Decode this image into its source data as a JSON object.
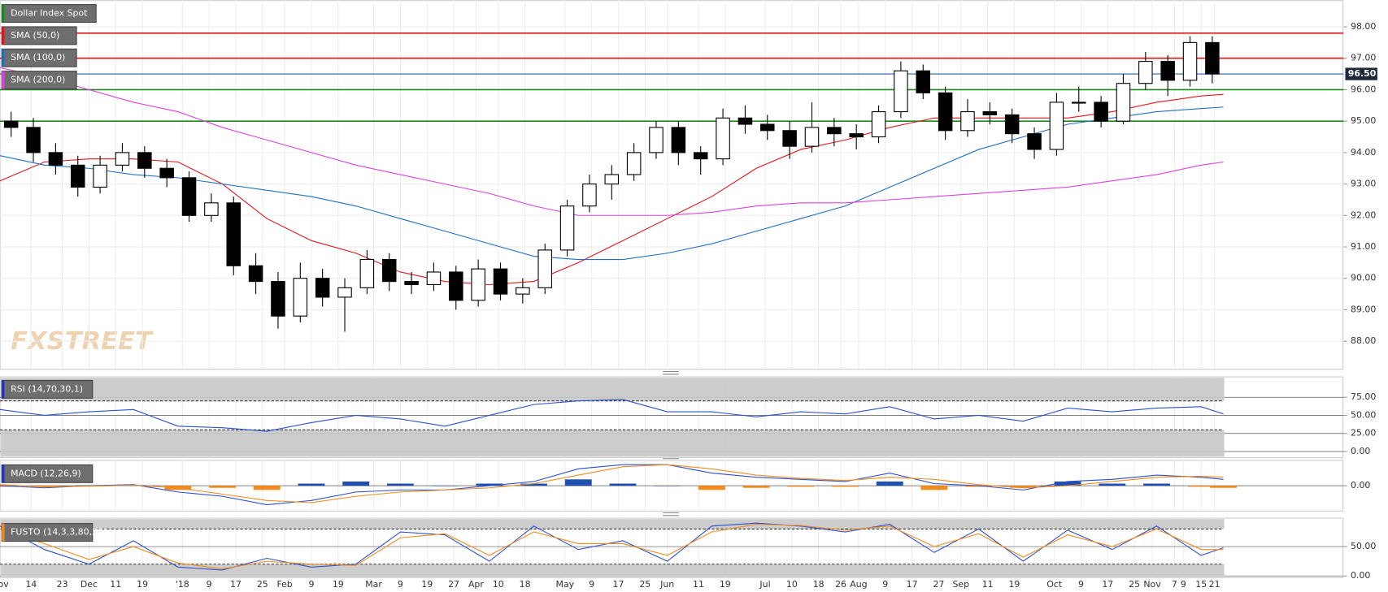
{
  "chart_data": [
    {
      "type": "candlestick",
      "title": "Dollar Index Spot",
      "watermark": "FXSTREET",
      "xlim": [
        0,
        302
      ],
      "xticks": [
        {
          "value": 0,
          "label": "Nov"
        },
        {
          "value": 7,
          "label": "14"
        },
        {
          "value": 14,
          "label": "23"
        },
        {
          "value": 20,
          "label": "Dec"
        },
        {
          "value": 26,
          "label": "11"
        },
        {
          "value": 32,
          "label": "19"
        },
        {
          "value": 41,
          "label": "'18"
        },
        {
          "value": 47,
          "label": "9"
        },
        {
          "value": 53,
          "label": "17"
        },
        {
          "value": 59,
          "label": "25"
        },
        {
          "value": 64,
          "label": "Feb"
        },
        {
          "value": 70,
          "label": "9"
        },
        {
          "value": 76,
          "label": "19"
        },
        {
          "value": 84,
          "label": "Mar"
        },
        {
          "value": 90,
          "label": "9"
        },
        {
          "value": 96,
          "label": "19"
        },
        {
          "value": 102,
          "label": "27"
        },
        {
          "value": 107,
          "label": "Apr"
        },
        {
          "value": 112,
          "label": "10"
        },
        {
          "value": 118,
          "label": "18"
        },
        {
          "value": 127,
          "label": "May"
        },
        {
          "value": 133,
          "label": "9"
        },
        {
          "value": 139,
          "label": "17"
        },
        {
          "value": 145,
          "label": "25"
        },
        {
          "value": 150,
          "label": "Jun"
        },
        {
          "value": 157,
          "label": "11"
        },
        {
          "value": 163,
          "label": "19"
        },
        {
          "value": 172,
          "label": "Jul"
        },
        {
          "value": 178,
          "label": "10"
        },
        {
          "value": 184,
          "label": "18"
        },
        {
          "value": 189,
          "label": "26"
        },
        {
          "value": 193,
          "label": "Aug"
        },
        {
          "value": 199,
          "label": "9"
        },
        {
          "value": 205,
          "label": "17"
        },
        {
          "value": 211,
          "label": "27"
        },
        {
          "value": 216,
          "label": "Sep"
        },
        {
          "value": 222,
          "label": "11"
        },
        {
          "value": 228,
          "label": "19"
        },
        {
          "value": 237,
          "label": "Oct"
        },
        {
          "value": 243,
          "label": "9"
        },
        {
          "value": 249,
          "label": "17"
        },
        {
          "value": 255,
          "label": "25"
        },
        {
          "value": 259,
          "label": "Nov"
        },
        {
          "value": 264,
          "label": "7"
        },
        {
          "value": 266,
          "label": "9"
        },
        {
          "value": 270,
          "label": "15"
        },
        {
          "value": 273,
          "label": "21"
        }
      ],
      "ylim": [
        87.12,
        98.85
      ],
      "yticks": [
        {
          "value": 88,
          "label": "88.00"
        },
        {
          "value": 89,
          "label": "89.00"
        },
        {
          "value": 90,
          "label": "90.00"
        },
        {
          "value": 91,
          "label": "91.00"
        },
        {
          "value": 92,
          "label": "92.00"
        },
        {
          "value": 93,
          "label": "93.00"
        },
        {
          "value": 94,
          "label": "94.00"
        },
        {
          "value": 95,
          "label": "95.00"
        },
        {
          "value": 96,
          "label": "96.00"
        },
        {
          "value": 97,
          "label": "97.00"
        },
        {
          "value": 98,
          "label": "98.00"
        }
      ],
      "last_price": {
        "value": 96.5,
        "label": "96.50"
      },
      "levels": [
        {
          "value": 97.8,
          "color": "#e8141a"
        },
        {
          "value": 97.0,
          "color": "#e8141a"
        },
        {
          "value": 96.5,
          "color": "#2a5fa5"
        },
        {
          "value": 96.0,
          "color": "#1a8a1a"
        },
        {
          "value": 95.0,
          "color": "#1a8a1a"
        }
      ],
      "legend_color": "#1a8a1a",
      "x": [
        2.5,
        7.5,
        12.5,
        17.5,
        22.5,
        27.5,
        32.5,
        37.5,
        42.5,
        47.5,
        52.5,
        57.5,
        62.5,
        67.5,
        72.5,
        77.5,
        82.5,
        87.5,
        92.5,
        97.5,
        102.5,
        107.5,
        112.5,
        117.5,
        122.5,
        127.5,
        132.5,
        137.5,
        142.5,
        147.5,
        152.5,
        157.5,
        162.5,
        167.5,
        172.5,
        177.5,
        182.5,
        187.5,
        192.5,
        197.5,
        202.5,
        207.5,
        212.5,
        217.5,
        222.5,
        227.5,
        232.5,
        237.5,
        242.5,
        247.5,
        252.5,
        257.5,
        262.5,
        267.5,
        272.5
      ],
      "open": [
        95.0,
        94.8,
        94.0,
        93.6,
        92.9,
        93.6,
        94.0,
        93.5,
        93.2,
        92.0,
        92.4,
        90.4,
        89.9,
        88.8,
        90.0,
        89.4,
        89.7,
        90.6,
        89.9,
        89.8,
        90.2,
        89.3,
        90.3,
        89.5,
        89.7,
        90.9,
        92.3,
        93.0,
        93.3,
        94.0,
        94.8,
        94.0,
        93.8,
        95.1,
        94.9,
        94.7,
        94.2,
        94.8,
        94.6,
        94.5,
        95.3,
        96.6,
        95.9,
        94.7,
        95.3,
        95.2,
        94.6,
        94.1,
        95.6,
        95.6,
        95.0,
        96.2,
        96.9,
        96.3,
        97.5
      ],
      "high": [
        95.3,
        95.1,
        94.3,
        93.9,
        93.9,
        94.3,
        94.2,
        93.8,
        93.4,
        92.7,
        92.6,
        90.8,
        90.2,
        90.5,
        90.3,
        90.0,
        90.9,
        90.8,
        90.2,
        90.5,
        90.4,
        90.6,
        90.5,
        90.0,
        91.1,
        92.5,
        93.3,
        93.6,
        94.3,
        95.0,
        95.0,
        94.2,
        95.4,
        95.5,
        95.2,
        95.0,
        95.6,
        95.1,
        94.9,
        95.5,
        96.9,
        96.8,
        96.1,
        95.7,
        95.6,
        95.4,
        94.8,
        95.9,
        96.1,
        95.8,
        96.5,
        97.2,
        97.1,
        97.7,
        97.7
      ],
      "low": [
        94.5,
        93.7,
        93.3,
        92.6,
        92.7,
        93.4,
        93.2,
        92.9,
        91.8,
        91.8,
        90.1,
        89.5,
        88.4,
        88.6,
        89.1,
        88.3,
        89.5,
        89.6,
        89.5,
        89.6,
        89.0,
        89.1,
        89.3,
        89.2,
        89.5,
        90.7,
        92.1,
        92.5,
        93.1,
        93.8,
        93.6,
        93.3,
        93.6,
        94.6,
        94.4,
        93.8,
        94.0,
        94.2,
        94.1,
        94.3,
        95.1,
        95.7,
        94.4,
        94.5,
        94.9,
        94.3,
        93.8,
        93.9,
        95.3,
        94.8,
        94.9,
        96.0,
        95.8,
        96.1,
        96.2
      ],
      "close": [
        94.8,
        94.0,
        93.6,
        92.9,
        93.6,
        94.0,
        93.5,
        93.2,
        92.0,
        92.4,
        90.4,
        89.9,
        88.8,
        90.0,
        89.4,
        89.7,
        90.6,
        89.9,
        89.8,
        90.2,
        89.3,
        90.3,
        89.5,
        89.7,
        90.9,
        92.3,
        93.0,
        93.3,
        94.0,
        94.8,
        94.0,
        93.8,
        95.1,
        94.9,
        94.7,
        94.2,
        94.8,
        94.6,
        94.5,
        95.3,
        96.6,
        95.9,
        94.7,
        95.3,
        95.2,
        94.6,
        94.1,
        95.6,
        95.6,
        95.0,
        96.2,
        96.9,
        96.3,
        97.5,
        96.5
      ],
      "series": [
        {
          "name": "SMA (50,0)",
          "color": "#e8141a",
          "x": [
            0,
            10,
            20,
            30,
            40,
            50,
            60,
            70,
            80,
            90,
            100,
            110,
            120,
            130,
            140,
            150,
            160,
            170,
            180,
            190,
            200,
            210,
            220,
            230,
            240,
            250,
            260,
            270,
            275
          ],
          "values": [
            93.1,
            93.7,
            93.8,
            93.8,
            93.7,
            93.0,
            91.9,
            91.2,
            90.8,
            90.2,
            89.9,
            89.8,
            89.9,
            90.5,
            91.2,
            91.9,
            92.6,
            93.5,
            94.1,
            94.4,
            94.8,
            95.1,
            95.1,
            95.1,
            95.1,
            95.3,
            95.6,
            95.8,
            95.85
          ]
        },
        {
          "name": "SMA (100,0)",
          "color": "#1f6fc4",
          "x": [
            0,
            10,
            20,
            30,
            40,
            50,
            60,
            70,
            80,
            90,
            100,
            110,
            120,
            130,
            140,
            150,
            160,
            170,
            180,
            190,
            200,
            210,
            220,
            230,
            240,
            250,
            260,
            270,
            275
          ],
          "values": [
            93.9,
            93.6,
            93.5,
            93.3,
            93.2,
            93.0,
            92.8,
            92.6,
            92.3,
            91.9,
            91.5,
            91.1,
            90.7,
            90.6,
            90.6,
            90.8,
            91.1,
            91.5,
            91.9,
            92.3,
            92.9,
            93.5,
            94.1,
            94.5,
            94.9,
            95.1,
            95.3,
            95.4,
            95.45
          ]
        },
        {
          "name": "SMA (200,0)",
          "color": "#e040e0",
          "x": [
            0,
            10,
            20,
            30,
            40,
            50,
            60,
            70,
            80,
            90,
            100,
            110,
            120,
            130,
            140,
            150,
            160,
            170,
            180,
            190,
            200,
            210,
            220,
            230,
            240,
            250,
            260,
            270,
            275
          ],
          "values": [
            96.7,
            96.4,
            96.0,
            95.6,
            95.3,
            94.8,
            94.4,
            94.0,
            93.6,
            93.3,
            93.0,
            92.7,
            92.3,
            92.0,
            92.0,
            92.0,
            92.1,
            92.3,
            92.4,
            92.4,
            92.5,
            92.6,
            92.7,
            92.8,
            92.9,
            93.1,
            93.3,
            93.6,
            93.7
          ]
        }
      ]
    },
    {
      "type": "rsi",
      "title": "RSI (14,70,30,1)",
      "legend_color": "#2233cc",
      "overbought": 70,
      "oversold": 30,
      "ylim": [
        -8.6,
        103.3
      ],
      "yticks": [
        {
          "value": 0,
          "label": "0.00"
        },
        {
          "value": 25,
          "label": "25.00"
        },
        {
          "value": 50,
          "label": "50.00"
        },
        {
          "value": 75,
          "label": "75.00"
        }
      ],
      "x": [
        0,
        10,
        20,
        30,
        40,
        50,
        60,
        70,
        80,
        90,
        100,
        110,
        120,
        130,
        140,
        150,
        160,
        170,
        180,
        190,
        200,
        210,
        220,
        230,
        240,
        250,
        260,
        270,
        275
      ],
      "series": [
        {
          "name": "RSI",
          "color": "#2a4fd0",
          "values": [
            58,
            50,
            55,
            58,
            35,
            33,
            28,
            40,
            50,
            45,
            35,
            50,
            65,
            70,
            72,
            55,
            55,
            48,
            55,
            52,
            62,
            45,
            50,
            42,
            60,
            55,
            60,
            62,
            52
          ]
        }
      ]
    },
    {
      "type": "macd",
      "title": "MACD (12,26,9)",
      "legend_color": "#2233cc",
      "ylim": [
        -1.2,
        1.2
      ],
      "yticks": [
        {
          "value": 0,
          "label": "0.00"
        }
      ],
      "x": [
        0,
        10,
        20,
        30,
        40,
        50,
        60,
        70,
        80,
        90,
        100,
        110,
        120,
        130,
        140,
        150,
        160,
        170,
        180,
        190,
        200,
        210,
        220,
        230,
        240,
        250,
        260,
        270,
        275
      ],
      "histogram": {
        "up_color": "#1f4fb0",
        "down_color": "#f28c1c",
        "values": [
          -0.05,
          -0.05,
          0.02,
          0.03,
          -0.2,
          -0.1,
          -0.2,
          0.1,
          0.2,
          0.1,
          0.0,
          0.1,
          0.1,
          0.3,
          0.1,
          0.0,
          -0.2,
          -0.1,
          -0.05,
          -0.05,
          0.2,
          -0.2,
          -0.05,
          -0.1,
          0.2,
          0.1,
          0.1,
          -0.05,
          -0.1
        ]
      },
      "series": [
        {
          "name": "MACD",
          "color": "#2a4fd0",
          "values": [
            0.0,
            -0.1,
            0.0,
            0.05,
            -0.3,
            -0.5,
            -0.9,
            -0.7,
            -0.3,
            -0.2,
            -0.2,
            0.0,
            0.2,
            0.8,
            1.0,
            1.0,
            0.6,
            0.4,
            0.3,
            0.2,
            0.6,
            0.1,
            0.0,
            -0.2,
            0.2,
            0.3,
            0.5,
            0.4,
            0.3
          ]
        },
        {
          "name": "Signal",
          "color": "#f28c1c",
          "values": [
            0.05,
            -0.05,
            -0.02,
            0.02,
            -0.1,
            -0.4,
            -0.7,
            -0.8,
            -0.5,
            -0.3,
            -0.2,
            -0.1,
            0.1,
            0.5,
            0.9,
            1.0,
            0.8,
            0.5,
            0.35,
            0.25,
            0.4,
            0.3,
            0.05,
            -0.1,
            0.0,
            0.2,
            0.4,
            0.45,
            0.4
          ]
        }
      ]
    },
    {
      "type": "stochastic",
      "title": "FUSTO (14,3,3,80,20)",
      "legend_color": "#f28c1c",
      "overbought": 80,
      "oversold": 20,
      "ylim": [
        -3,
        98.5
      ],
      "yticks": [
        {
          "value": 0,
          "label": "0.00"
        },
        {
          "value": 50,
          "label": "50.00"
        }
      ],
      "x": [
        0,
        10,
        20,
        30,
        40,
        50,
        60,
        70,
        80,
        90,
        100,
        110,
        120,
        130,
        140,
        150,
        160,
        170,
        180,
        190,
        200,
        210,
        220,
        230,
        240,
        250,
        260,
        270,
        275
      ],
      "series": [
        {
          "name": "%K",
          "color": "#2a4fd0",
          "values": [
            85,
            45,
            20,
            60,
            15,
            10,
            30,
            15,
            20,
            75,
            70,
            25,
            85,
            45,
            60,
            25,
            85,
            90,
            85,
            75,
            88,
            40,
            80,
            25,
            78,
            45,
            85,
            35,
            48
          ]
        },
        {
          "name": "%D",
          "color": "#f28c1c",
          "values": [
            80,
            55,
            28,
            50,
            22,
            12,
            25,
            20,
            18,
            65,
            72,
            35,
            75,
            55,
            55,
            35,
            75,
            88,
            86,
            78,
            85,
            50,
            72,
            32,
            70,
            50,
            80,
            45,
            45
          ]
        }
      ]
    }
  ]
}
